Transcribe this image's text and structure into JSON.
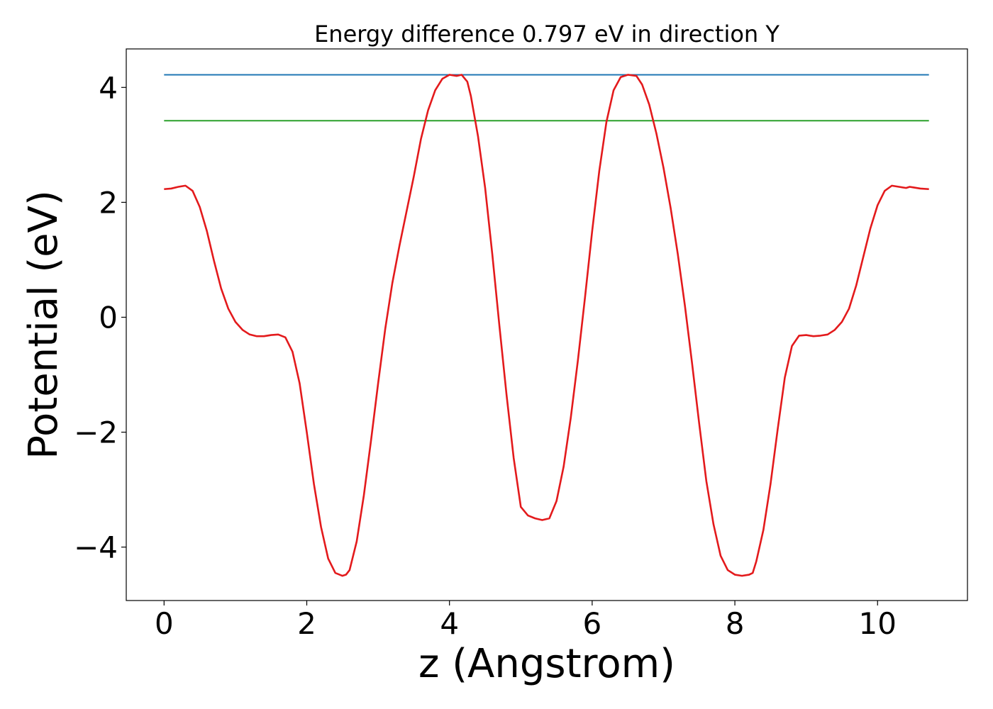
{
  "chart_data": {
    "type": "line",
    "title": "Energy difference 0.797 eV in direction Y",
    "xlabel": "z (Angstrom)",
    "ylabel": "Potential (eV)",
    "xlim": [
      -0.53,
      11.26
    ],
    "ylim": [
      -4.93,
      4.67
    ],
    "x_ticks": [
      0,
      2,
      4,
      6,
      8,
      10
    ],
    "x_tick_labels": [
      "0",
      "2",
      "4",
      "6",
      "8",
      "10"
    ],
    "y_ticks": [
      -4,
      -2,
      0,
      2,
      4
    ],
    "y_tick_labels": [
      "−4",
      "−2",
      "0",
      "2",
      "4"
    ],
    "grid": false,
    "legend": "none",
    "series": [
      {
        "color": "#1f77b4",
        "kind": "hline",
        "x": [
          0,
          10.72
        ],
        "y": [
          4.22,
          4.22
        ]
      },
      {
        "color": "#2ca02c",
        "kind": "hline",
        "x": [
          0,
          10.72
        ],
        "y": [
          3.42,
          3.42
        ]
      },
      {
        "color": "#e31a1c",
        "kind": "curve",
        "x": [
          0,
          0.1,
          0.2,
          0.3,
          0.4,
          0.5,
          0.6,
          0.7,
          0.8,
          0.9,
          1.0,
          1.1,
          1.2,
          1.3,
          1.4,
          1.5,
          1.6,
          1.7,
          1.8,
          1.9,
          2.0,
          2.1,
          2.2,
          2.3,
          2.4,
          2.5,
          2.55,
          2.6,
          2.7,
          2.8,
          2.9,
          3.0,
          3.1,
          3.2,
          3.3,
          3.4,
          3.5,
          3.6,
          3.7,
          3.8,
          3.9,
          4.0,
          4.1,
          4.17,
          4.25,
          4.3,
          4.4,
          4.5,
          4.6,
          4.7,
          4.8,
          4.9,
          5.0,
          5.1,
          5.2,
          5.3,
          5.4,
          5.5,
          5.6,
          5.7,
          5.8,
          5.9,
          6.0,
          6.1,
          6.2,
          6.3,
          6.4,
          6.5,
          6.62,
          6.7,
          6.8,
          6.9,
          7.0,
          7.1,
          7.2,
          7.3,
          7.4,
          7.5,
          7.6,
          7.7,
          7.8,
          7.9,
          8.0,
          8.1,
          8.2,
          8.25,
          8.3,
          8.4,
          8.5,
          8.6,
          8.7,
          8.8,
          8.9,
          9.0,
          9.1,
          9.2,
          9.3,
          9.4,
          9.5,
          9.6,
          9.7,
          9.8,
          9.9,
          10.0,
          10.1,
          10.2,
          10.3,
          10.4,
          10.45,
          10.5,
          10.6,
          10.72
        ],
        "y": [
          2.23,
          2.24,
          2.27,
          2.29,
          2.2,
          1.92,
          1.5,
          0.98,
          0.5,
          0.15,
          -0.08,
          -0.22,
          -0.3,
          -0.33,
          -0.33,
          -0.31,
          -0.3,
          -0.35,
          -0.6,
          -1.15,
          -2.0,
          -2.9,
          -3.65,
          -4.2,
          -4.45,
          -4.5,
          -4.48,
          -4.4,
          -3.9,
          -3.1,
          -2.15,
          -1.15,
          -0.2,
          0.6,
          1.25,
          1.85,
          2.45,
          3.1,
          3.6,
          3.95,
          4.15,
          4.22,
          4.2,
          4.22,
          4.1,
          3.85,
          3.15,
          2.25,
          1.1,
          -0.15,
          -1.35,
          -2.45,
          -3.3,
          -3.45,
          -3.5,
          -3.53,
          -3.5,
          -3.2,
          -2.6,
          -1.75,
          -0.75,
          0.35,
          1.5,
          2.55,
          3.4,
          3.95,
          4.18,
          4.22,
          4.2,
          4.05,
          3.7,
          3.2,
          2.6,
          1.9,
          1.1,
          0.2,
          -0.8,
          -1.85,
          -2.85,
          -3.6,
          -4.15,
          -4.4,
          -4.48,
          -4.5,
          -4.48,
          -4.45,
          -4.25,
          -3.7,
          -2.9,
          -1.95,
          -1.05,
          -0.5,
          -0.32,
          -0.31,
          -0.33,
          -0.32,
          -0.3,
          -0.22,
          -0.08,
          0.15,
          0.55,
          1.05,
          1.55,
          1.95,
          2.2,
          2.29,
          2.27,
          2.25,
          2.27,
          2.26,
          2.24,
          2.23
        ]
      }
    ]
  }
}
